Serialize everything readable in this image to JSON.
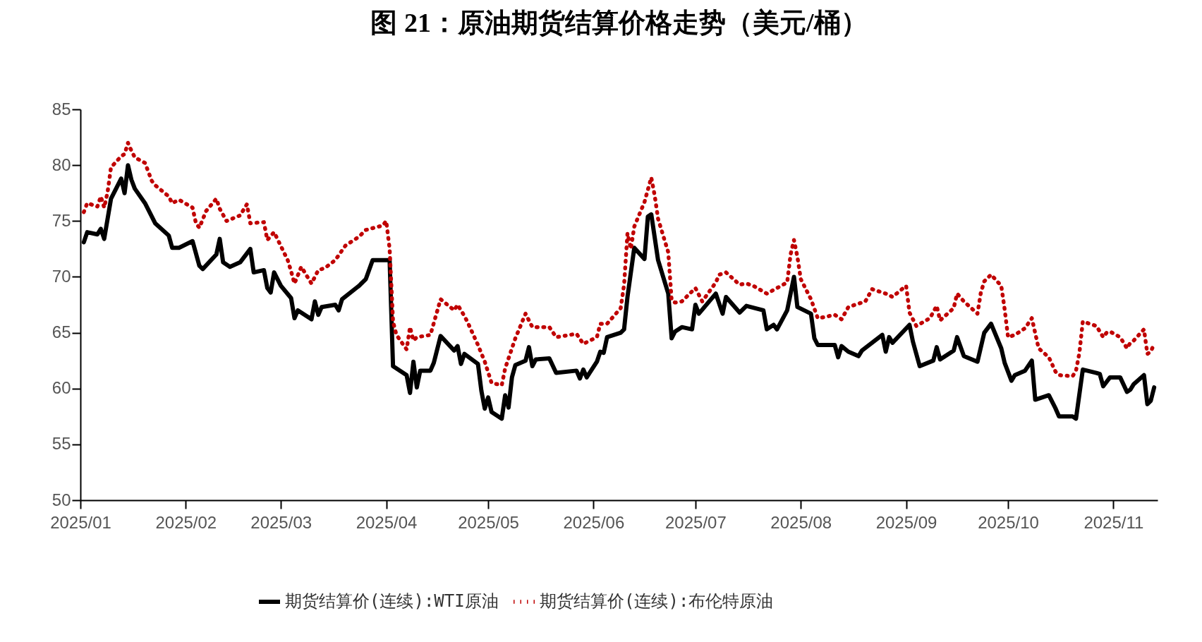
{
  "chart_data": {
    "type": "line",
    "title": "图 21：原油期货结算价格走势（美元/桶）",
    "xlim": [
      "2025-01-01",
      "2025-11-14"
    ],
    "xticks": [
      {
        "value": "2025-01-01",
        "label": "2025/01"
      },
      {
        "value": "2025-02-01",
        "label": "2025/02"
      },
      {
        "value": "2025-03-01",
        "label": "2025/03"
      },
      {
        "value": "2025-04-01",
        "label": "2025/04"
      },
      {
        "value": "2025-05-01",
        "label": "2025/05"
      },
      {
        "value": "2025-06-01",
        "label": "2025/06"
      },
      {
        "value": "2025-07-01",
        "label": "2025/07"
      },
      {
        "value": "2025-08-01",
        "label": "2025/08"
      },
      {
        "value": "2025-09-01",
        "label": "2025/09"
      },
      {
        "value": "2025-10-01",
        "label": "2025/10"
      },
      {
        "value": "2025-11-01",
        "label": "2025/11"
      }
    ],
    "ylim": [
      50,
      85
    ],
    "yticks": [
      50,
      55,
      60,
      65,
      70,
      75,
      80,
      85
    ],
    "grid": false,
    "legend": "bottom",
    "series": [
      {
        "name": "期货结算价(连续):WTI原油",
        "color": "#000000",
        "line_style": "solid",
        "x": [
          "2025-01-02",
          "2025-01-03",
          "2025-01-06",
          "2025-01-07",
          "2025-01-08",
          "2025-01-10",
          "2025-01-13",
          "2025-01-14",
          "2025-01-15",
          "2025-01-16",
          "2025-01-17",
          "2025-01-20",
          "2025-01-23",
          "2025-01-27",
          "2025-01-28",
          "2025-01-30",
          "2025-02-03",
          "2025-02-05",
          "2025-02-06",
          "2025-02-10",
          "2025-02-11",
          "2025-02-12",
          "2025-02-14",
          "2025-02-17",
          "2025-02-20",
          "2025-02-21",
          "2025-02-24",
          "2025-02-25",
          "2025-02-26",
          "2025-02-27",
          "2025-03-01",
          "2025-03-04",
          "2025-03-05",
          "2025-03-06",
          "2025-03-10",
          "2025-03-11",
          "2025-03-12",
          "2025-03-13",
          "2025-03-17",
          "2025-03-18",
          "2025-03-19",
          "2025-03-24",
          "2025-03-26",
          "2025-03-28",
          "2025-04-02",
          "2025-04-03",
          "2025-04-07",
          "2025-04-08",
          "2025-04-09",
          "2025-04-10",
          "2025-04-11",
          "2025-04-14",
          "2025-04-15",
          "2025-04-17",
          "2025-04-21",
          "2025-04-22",
          "2025-04-23",
          "2025-04-24",
          "2025-04-28",
          "2025-04-29",
          "2025-04-30",
          "2025-05-01",
          "2025-05-02",
          "2025-05-05",
          "2025-05-06",
          "2025-05-07",
          "2025-05-08",
          "2025-05-09",
          "2025-05-12",
          "2025-05-13",
          "2025-05-14",
          "2025-05-15",
          "2025-05-19",
          "2025-05-21",
          "2025-05-27",
          "2025-05-28",
          "2025-05-29",
          "2025-05-30",
          "2025-06-02",
          "2025-06-03",
          "2025-06-04",
          "2025-06-05",
          "2025-06-09",
          "2025-06-10",
          "2025-06-11",
          "2025-06-13",
          "2025-06-16",
          "2025-06-17",
          "2025-06-18",
          "2025-06-20",
          "2025-06-23",
          "2025-06-24",
          "2025-06-25",
          "2025-06-27",
          "2025-06-30",
          "2025-07-01",
          "2025-07-02",
          "2025-07-07",
          "2025-07-09",
          "2025-07-10",
          "2025-07-14",
          "2025-07-16",
          "2025-07-21",
          "2025-07-22",
          "2025-07-24",
          "2025-07-25",
          "2025-07-28",
          "2025-07-30",
          "2025-07-31",
          "2025-08-04",
          "2025-08-05",
          "2025-08-06",
          "2025-08-11",
          "2025-08-12",
          "2025-08-13",
          "2025-08-15",
          "2025-08-18",
          "2025-08-19",
          "2025-08-25",
          "2025-08-26",
          "2025-08-27",
          "2025-08-28",
          "2025-09-02",
          "2025-09-03",
          "2025-09-05",
          "2025-09-09",
          "2025-09-10",
          "2025-09-11",
          "2025-09-15",
          "2025-09-16",
          "2025-09-18",
          "2025-09-22",
          "2025-09-24",
          "2025-09-26",
          "2025-09-29",
          "2025-09-30",
          "2025-10-02",
          "2025-10-03",
          "2025-10-06",
          "2025-10-08",
          "2025-10-09",
          "2025-10-13",
          "2025-10-15",
          "2025-10-16",
          "2025-10-20",
          "2025-10-21",
          "2025-10-23",
          "2025-10-27",
          "2025-10-28",
          "2025-10-29",
          "2025-10-30",
          "2025-10-31",
          "2025-11-03",
          "2025-11-05",
          "2025-11-06",
          "2025-11-07",
          "2025-11-10",
          "2025-11-11",
          "2025-11-12",
          "2025-11-13"
        ],
        "values": [
          73.1,
          74.0,
          73.8,
          74.3,
          73.4,
          77.0,
          78.8,
          77.5,
          80.0,
          78.7,
          77.9,
          76.6,
          74.8,
          73.7,
          72.6,
          72.6,
          73.2,
          71.0,
          70.7,
          72.0,
          73.4,
          71.3,
          70.9,
          71.3,
          72.5,
          70.4,
          70.6,
          69.0,
          68.6,
          70.4,
          69.2,
          68.1,
          66.3,
          67.0,
          66.2,
          67.8,
          66.6,
          67.3,
          67.5,
          67.0,
          68.0,
          69.2,
          69.8,
          71.5,
          71.5,
          62.0,
          61.2,
          59.6,
          62.4,
          60.1,
          61.6,
          61.6,
          62.3,
          64.7,
          63.4,
          63.8,
          62.2,
          63.1,
          62.2,
          59.8,
          58.2,
          59.2,
          57.9,
          57.3,
          59.4,
          58.3,
          61.0,
          62.1,
          62.5,
          63.7,
          62.0,
          62.6,
          62.7,
          61.4,
          61.6,
          60.9,
          61.7,
          61.0,
          62.4,
          63.3,
          63.2,
          64.6,
          65.0,
          65.3,
          68.2,
          72.6,
          71.6,
          75.4,
          75.6,
          71.5,
          68.5,
          64.5,
          65.1,
          65.5,
          65.3,
          67.5,
          66.7,
          68.5,
          66.7,
          68.2,
          66.8,
          67.4,
          67.0,
          65.3,
          65.7,
          65.3,
          67.0,
          70.0,
          67.3,
          66.7,
          64.5,
          63.9,
          63.9,
          62.8,
          63.8,
          63.3,
          62.9,
          63.4,
          64.8,
          63.3,
          64.6,
          64.1,
          65.7,
          64.2,
          62.0,
          62.5,
          63.7,
          62.6,
          63.4,
          64.6,
          62.9,
          62.4,
          65.0,
          65.8,
          63.6,
          62.3,
          60.7,
          61.2,
          61.6,
          62.5,
          59.0,
          59.4,
          58.2,
          57.5,
          57.5,
          57.3,
          61.7,
          61.4,
          61.3,
          60.2,
          60.6,
          61.0,
          61.0,
          59.7,
          59.9,
          60.4,
          61.2,
          58.6,
          58.9,
          60.1
        ]
      },
      {
        "name": "期货结算价(连续):布伦特原油",
        "color": "#c00000",
        "line_style": "dotted",
        "x": [
          "2025-01-02",
          "2025-01-03",
          "2025-01-06",
          "2025-01-07",
          "2025-01-08",
          "2025-01-09",
          "2025-01-10",
          "2025-01-13",
          "2025-01-14",
          "2025-01-15",
          "2025-01-16",
          "2025-01-17",
          "2025-01-20",
          "2025-01-22",
          "2025-01-23",
          "2025-01-27",
          "2025-01-28",
          "2025-01-30",
          "2025-02-03",
          "2025-02-04",
          "2025-02-05",
          "2025-02-07",
          "2025-02-10",
          "2025-02-11",
          "2025-02-13",
          "2025-02-17",
          "2025-02-19",
          "2025-02-20",
          "2025-02-24",
          "2025-02-25",
          "2025-02-27",
          "2025-03-03",
          "2025-03-04",
          "2025-03-05",
          "2025-03-07",
          "2025-03-10",
          "2025-03-12",
          "2025-03-14",
          "2025-03-17",
          "2025-03-20",
          "2025-03-24",
          "2025-03-26",
          "2025-03-31",
          "2025-04-01",
          "2025-04-02",
          "2025-04-03",
          "2025-04-04",
          "2025-04-07",
          "2025-04-08",
          "2025-04-09",
          "2025-04-10",
          "2025-04-14",
          "2025-04-17",
          "2025-04-21",
          "2025-04-22",
          "2025-04-24",
          "2025-04-25",
          "2025-04-28",
          "2025-04-30",
          "2025-05-02",
          "2025-05-05",
          "2025-05-06",
          "2025-05-09",
          "2025-05-12",
          "2025-05-14",
          "2025-05-19",
          "2025-05-21",
          "2025-05-27",
          "2025-05-29",
          "2025-06-02",
          "2025-06-03",
          "2025-06-05",
          "2025-06-09",
          "2025-06-10",
          "2025-06-11",
          "2025-06-12",
          "2025-06-13",
          "2025-06-16",
          "2025-06-18",
          "2025-06-19",
          "2025-06-20",
          "2025-06-23",
          "2025-06-24",
          "2025-06-25",
          "2025-06-27",
          "2025-06-30",
          "2025-07-01",
          "2025-07-03",
          "2025-07-07",
          "2025-07-08",
          "2025-07-10",
          "2025-07-14",
          "2025-07-16",
          "2025-07-18",
          "2025-07-22",
          "2025-07-28",
          "2025-07-29",
          "2025-07-30",
          "2025-07-31",
          "2025-08-01",
          "2025-08-04",
          "2025-08-06",
          "2025-08-08",
          "2025-08-11",
          "2025-08-13",
          "2025-08-15",
          "2025-08-20",
          "2025-08-22",
          "2025-08-26",
          "2025-08-28",
          "2025-09-01",
          "2025-09-02",
          "2025-09-04",
          "2025-09-08",
          "2025-09-10",
          "2025-09-11",
          "2025-09-15",
          "2025-09-16",
          "2025-09-18",
          "2025-09-22",
          "2025-09-23",
          "2025-09-24",
          "2025-09-26",
          "2025-09-29",
          "2025-09-30",
          "2025-10-01",
          "2025-10-03",
          "2025-10-06",
          "2025-10-08",
          "2025-10-10",
          "2025-10-13",
          "2025-10-15",
          "2025-10-16",
          "2025-10-20",
          "2025-10-21",
          "2025-10-22",
          "2025-10-23",
          "2025-10-27",
          "2025-10-29",
          "2025-10-30",
          "2025-10-31",
          "2025-11-03",
          "2025-11-05",
          "2025-11-06",
          "2025-11-07",
          "2025-11-10",
          "2025-11-11",
          "2025-11-12",
          "2025-11-13"
        ],
        "values": [
          75.8,
          76.6,
          76.3,
          77.2,
          76.2,
          77.6,
          79.8,
          80.8,
          81.0,
          82.0,
          81.3,
          80.7,
          80.2,
          78.6,
          78.2,
          77.2,
          76.6,
          76.9,
          76.2,
          74.8,
          74.4,
          75.9,
          77.0,
          76.1,
          75.0,
          75.5,
          76.5,
          74.8,
          74.9,
          73.3,
          74.0,
          71.5,
          70.5,
          69.4,
          70.9,
          69.4,
          70.6,
          70.8,
          71.5,
          72.8,
          73.6,
          74.2,
          74.6,
          75.0,
          72.5,
          66.0,
          64.8,
          63.5,
          65.5,
          64.3,
          64.6,
          64.8,
          68.0,
          67.0,
          67.5,
          66.5,
          65.9,
          63.9,
          62.4,
          60.5,
          60.3,
          61.8,
          64.5,
          66.7,
          65.5,
          65.5,
          64.6,
          64.9,
          64.0,
          64.6,
          65.8,
          65.8,
          67.2,
          69.3,
          73.9,
          72.5,
          74.5,
          76.7,
          78.9,
          77.3,
          75.2,
          72.2,
          67.9,
          67.7,
          67.8,
          68.7,
          69.0,
          67.8,
          69.5,
          70.2,
          70.4,
          69.3,
          69.4,
          69.2,
          68.5,
          69.5,
          72.0,
          73.3,
          71.8,
          69.8,
          68.0,
          66.3,
          66.4,
          66.6,
          66.2,
          67.3,
          67.8,
          68.9,
          68.5,
          68.2,
          69.2,
          66.8,
          65.6,
          66.3,
          67.4,
          66.1,
          67.2,
          68.5,
          67.8,
          66.7,
          68.6,
          69.6,
          70.2,
          69.2,
          67.1,
          64.6,
          64.8,
          65.4,
          66.3,
          63.6,
          62.8,
          61.5,
          61.2,
          61.1,
          61.6,
          63.2,
          66.0,
          65.6,
          64.6,
          65.0,
          65.1,
          64.6,
          63.6,
          64.1,
          64.3,
          65.3,
          63.1,
          63.3,
          64.0
        ]
      }
    ]
  }
}
